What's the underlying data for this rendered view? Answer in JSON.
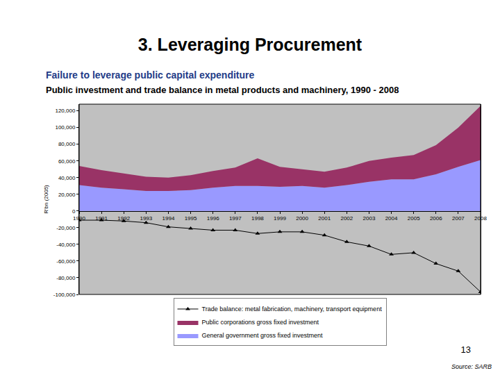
{
  "slide": {
    "title": "3. Leveraging Procurement",
    "subtitle": "Failure to leverage public capital expenditure",
    "page_number": "13",
    "source": "Source: SARB"
  },
  "chart_data": {
    "type": "area",
    "title": "Public investment and trade balance in metal products and machinery, 1990 - 2008",
    "y_label": "R'bn (2005)",
    "categories": [
      "1990",
      "1991",
      "1992",
      "1993",
      "1994",
      "1995",
      "1996",
      "1997",
      "1998",
      "1999",
      "2000",
      "2001",
      "2002",
      "2003",
      "2004",
      "2005",
      "2006",
      "2007",
      "2008"
    ],
    "stacked": true,
    "series": [
      {
        "name": "General government gross fixed investment",
        "type": "area",
        "color": "#9999ff",
        "values": [
          31000,
          28000,
          26000,
          24000,
          24000,
          25000,
          28000,
          30000,
          30000,
          29000,
          30000,
          28000,
          31000,
          35000,
          38000,
          38000,
          44000,
          53000,
          61000
        ]
      },
      {
        "name": "Public corporations gross fixed investment",
        "type": "area",
        "color": "#993366",
        "values": [
          23000,
          21000,
          19000,
          17000,
          16000,
          18000,
          20000,
          22000,
          33000,
          24000,
          20000,
          19000,
          21000,
          25000,
          26000,
          29000,
          35000,
          47000,
          65000
        ]
      },
      {
        "name": "Trade balance: metal fabrication, machinery, transport equipment",
        "type": "line",
        "color": "#000000",
        "marker": "triangle-up",
        "values": [
          -11000,
          -11000,
          -12000,
          -14000,
          -19000,
          -21000,
          -23000,
          -23000,
          -27000,
          -25000,
          -25000,
          -29000,
          -37000,
          -42000,
          -52000,
          -50000,
          -63000,
          -72000,
          -97000
        ]
      }
    ],
    "ylim": [
      -100000,
      128000
    ],
    "yticks": [
      {
        "value": -100000,
        "label": "-100,000"
      },
      {
        "value": -80000,
        "label": "-80,000"
      },
      {
        "value": -60000,
        "label": "-60,000"
      },
      {
        "value": -40000,
        "label": "-40,000"
      },
      {
        "value": -20000,
        "label": "-20,000"
      },
      0,
      {
        "value": 20000,
        "label": "20,000"
      },
      {
        "value": 40000,
        "label": "40,000"
      },
      {
        "value": 60000,
        "label": "60,000"
      },
      {
        "value": 80000,
        "label": "80,000"
      },
      {
        "value": 100000,
        "label": "100,000"
      },
      {
        "value": 120000,
        "label": "120,000"
      }
    ],
    "grid": false,
    "legend": "bottom"
  }
}
